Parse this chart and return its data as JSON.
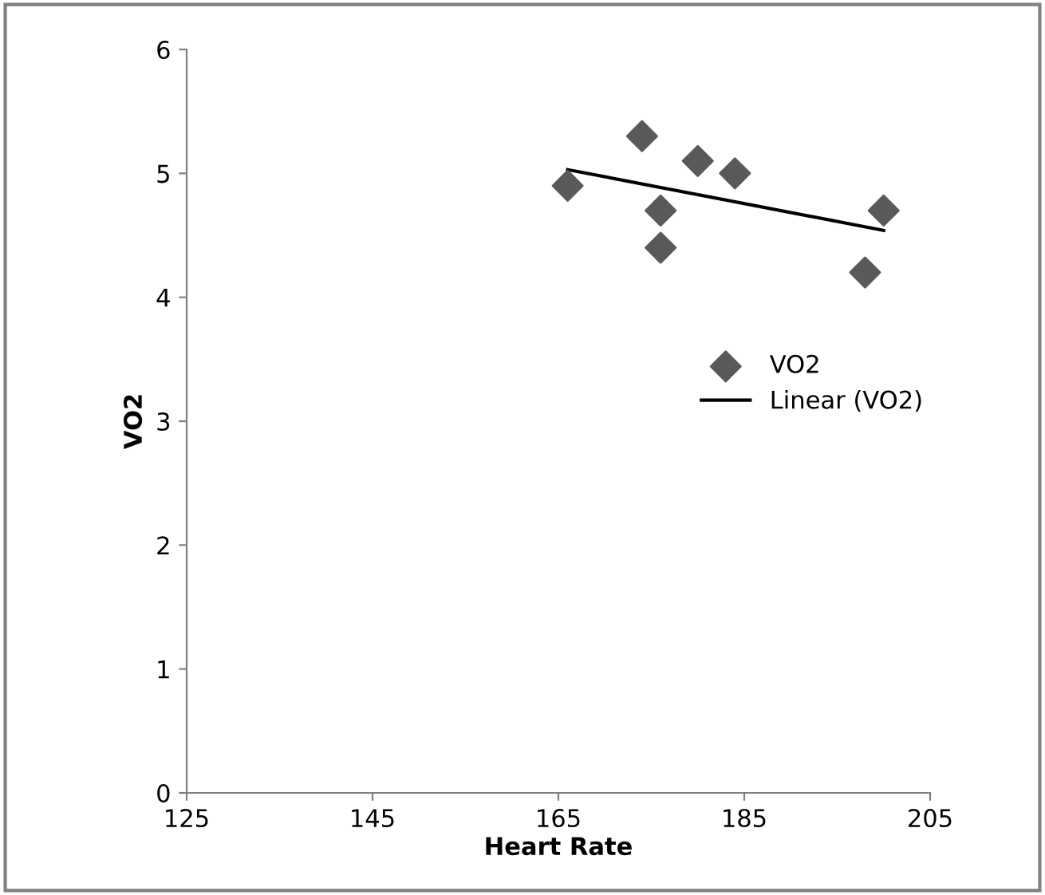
{
  "chart_data": {
    "type": "scatter",
    "xlabel": "Heart Rate",
    "ylabel": "VO2",
    "xlim": [
      125,
      205
    ],
    "xticks": [
      125,
      145,
      165,
      185,
      205
    ],
    "ylim": [
      0,
      6
    ],
    "yticks": [
      0,
      1,
      2,
      3,
      4,
      5,
      6
    ],
    "grid": false,
    "legend": "right",
    "series": [
      {
        "name": "VO2",
        "marker": "diamond",
        "color": "#595959",
        "x": [
          166,
          174,
          176,
          176,
          180,
          184,
          198,
          200
        ],
        "values": [
          4.9,
          5.3,
          4.7,
          4.4,
          5.1,
          5.0,
          4.2,
          4.7
        ]
      },
      {
        "name": "Linear (VO2)",
        "type": "line",
        "color": "#000000",
        "x": [
          166,
          200
        ],
        "values": [
          5.03,
          4.54
        ]
      }
    ]
  }
}
